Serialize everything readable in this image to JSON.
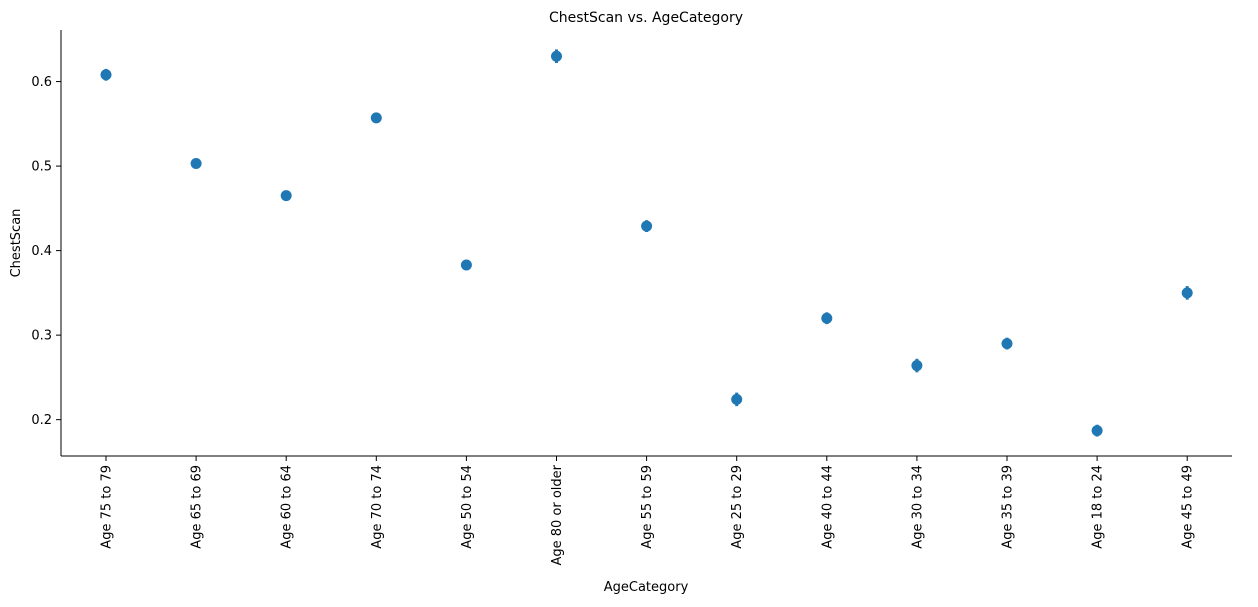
{
  "chart_data": {
    "type": "scatter",
    "title": "ChestScan vs. AgeCategory",
    "xlabel": "AgeCategory",
    "ylabel": "ChestScan",
    "categories": [
      "Age 75 to 79",
      "Age 65 to 69",
      "Age 60 to 64",
      "Age 70 to 74",
      "Age 50 to 54",
      "Age 80 or older",
      "Age 55 to 59",
      "Age 25 to 29",
      "Age 40 to 44",
      "Age 30 to 34",
      "Age 35 to 39",
      "Age 18 to 24",
      "Age 45 to 49"
    ],
    "values": [
      0.608,
      0.503,
      0.465,
      0.557,
      0.383,
      0.63,
      0.429,
      0.224,
      0.32,
      0.264,
      0.29,
      0.187,
      0.35
    ],
    "error_low": [
      0.601,
      0.498,
      0.46,
      0.551,
      0.377,
      0.622,
      0.422,
      0.216,
      0.313,
      0.256,
      0.283,
      0.18,
      0.342
    ],
    "error_high": [
      0.615,
      0.508,
      0.47,
      0.563,
      0.389,
      0.638,
      0.436,
      0.232,
      0.327,
      0.272,
      0.297,
      0.194,
      0.358
    ],
    "ylim": [
      0.157,
      0.661
    ],
    "yticks": [
      0.2,
      0.3,
      0.4,
      0.5,
      0.6
    ],
    "ytick_labels": [
      "0.2",
      "0.3",
      "0.4",
      "0.5",
      "0.6"
    ],
    "grid": false,
    "color": "#1f77b4"
  }
}
